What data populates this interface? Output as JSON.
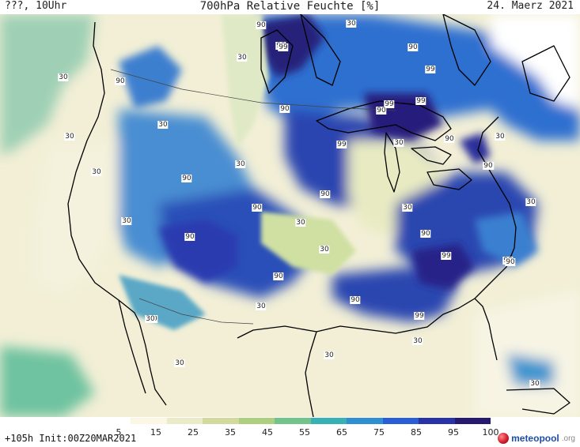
{
  "header": {
    "left": "???, 10Uhr",
    "center": "700hPa Relative Feuchte [%]",
    "right": "24. Maerz 2021"
  },
  "footer": {
    "run_info": "+105h Init:00Z20MAR2021",
    "logo_main": "meteopool",
    "logo_suffix": ".org"
  },
  "scale": {
    "ticks": [
      "5",
      "15",
      "25",
      "35",
      "45",
      "55",
      "65",
      "75",
      "85",
      "95",
      "100"
    ],
    "colors": [
      "#ffffff",
      "#fbf7e4",
      "#ecebc8",
      "#d3d99c",
      "#aed07e",
      "#73c48b",
      "#37b1b6",
      "#2f8fd0",
      "#2a5ed6",
      "#2733a6",
      "#261a6e"
    ]
  },
  "map": {
    "contour_labels": [
      "90",
      "90",
      "30",
      "30",
      "90",
      "99",
      "30",
      "90",
      "99",
      "99",
      "99",
      "90",
      "90",
      "30",
      "99",
      "30",
      "30",
      "90",
      "30",
      "90",
      "90",
      "30",
      "30",
      "90",
      "90",
      "30",
      "30",
      "90",
      "30",
      "90",
      "99",
      "90",
      "90",
      "90",
      "99",
      "30",
      "30",
      "30",
      "30",
      "90",
      "30",
      "90",
      "30",
      "30",
      "30",
      "30"
    ]
  }
}
